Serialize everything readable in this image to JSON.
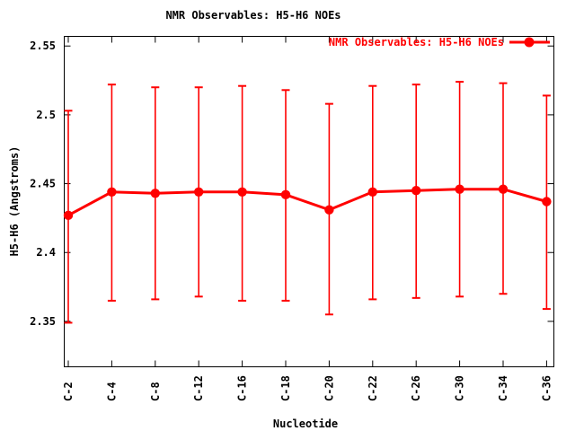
{
  "chart_data": {
    "type": "line",
    "title": "NMR Observables: H5-H6 NOEs",
    "xlabel": "Nucleotide",
    "ylabel": "H5-H6 (Angstroms)",
    "grid": false,
    "background_color": "#ffffff",
    "axis_color": "#000000",
    "legend": {
      "label": "NMR Observables: H5-H6 NOEs",
      "position": "top-right-inside"
    },
    "categories": [
      "C-2",
      "C-4",
      "C-8",
      "C-12",
      "C-16",
      "C-18",
      "C-20",
      "C-22",
      "C-26",
      "C-30",
      "C-34",
      "C-36"
    ],
    "series": [
      {
        "name": "NMR Observables: H5-H6 NOEs",
        "color": "#ff0000",
        "marker": "filled-circle",
        "style": "line-with-error-bars",
        "values": [
          2.427,
          2.444,
          2.443,
          2.444,
          2.444,
          2.442,
          2.431,
          2.444,
          2.445,
          2.446,
          2.446,
          2.437
        ],
        "error_low": [
          2.349,
          2.365,
          2.366,
          2.368,
          2.365,
          2.365,
          2.355,
          2.366,
          2.367,
          2.368,
          2.37,
          2.359
        ],
        "error_high": [
          2.503,
          2.522,
          2.52,
          2.52,
          2.521,
          2.518,
          2.508,
          2.521,
          2.522,
          2.524,
          2.523,
          2.514
        ]
      }
    ],
    "yticks": [
      2.35,
      2.4,
      2.45,
      2.5,
      2.55
    ],
    "ytick_labels": [
      "2.35",
      "2.4",
      "2.45",
      "2.5",
      "2.55"
    ],
    "ylim": [
      2.317,
      2.557
    ]
  }
}
